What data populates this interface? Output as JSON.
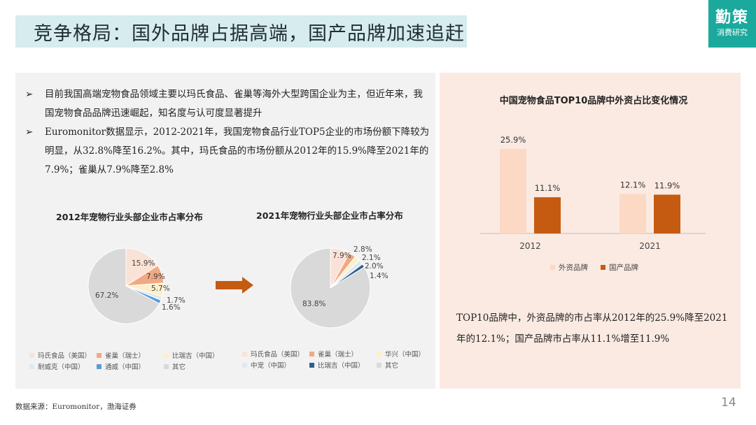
{
  "title": "竞争格局：国外品牌占据高端，国产品牌加速追赶",
  "logo": {
    "line1": "勤策",
    "line2": "消费研究"
  },
  "bullets": [
    {
      "marker": "➢",
      "text": "目前我国高端宠物食品领域主要以玛氏食品、雀巢等海外大型跨国企业为主，但近年来，我国宠物食品品牌迅速崛起，知名度与认可度显著提升"
    },
    {
      "marker": "➢",
      "text": "Euromonitor数据显示，2012-2021年，我国宠物食品行业TOP5企业的市场份额下降较为明显，从32.8%降至16.2%。其中，玛氏食品的市场份额从2012年的15.9%降至2021年的7.9%；雀巢从7.9%降至2.8%"
    }
  ],
  "note": "TOP10品牌中，外资品牌的市占率从2012年的25.9%降至2021年的12.1%；国产品牌市占率从11.1%增至11.9%",
  "source": "数据来源：Euromonitor，渤海证券",
  "page_number": "14",
  "chart_data": [
    {
      "type": "pie",
      "title": "2012年宠物行业头部企业市占率分布",
      "slices": [
        {
          "name": "玛氏食品（美国）",
          "value": 15.9,
          "label": "15.9%",
          "color": "#fbe2d6"
        },
        {
          "name": "雀巢（瑞士）",
          "value": 7.9,
          "label": "7.9%",
          "color": "#f1a983"
        },
        {
          "name": "比瑞吉（中国）",
          "value": 5.7,
          "label": "5.7%",
          "color": "#fdf0c8"
        },
        {
          "name": "耐威克（中国）",
          "value": 1.7,
          "label": "1.7%",
          "color": "#e2e8f0"
        },
        {
          "name": "通威（中国）",
          "value": 1.6,
          "label": "1.6%",
          "color": "#5b9bd5"
        },
        {
          "name": "其它",
          "value": 67.2,
          "label": "67.2%",
          "color": "#d9d9d9"
        }
      ]
    },
    {
      "type": "pie",
      "title": "2021年宠物行业头部企业市占率分布",
      "slices": [
        {
          "name": "玛氏食品（美国）",
          "value": 7.9,
          "label": "7.9%",
          "color": "#fbe2d6"
        },
        {
          "name": "雀巢（瑞士）",
          "value": 2.8,
          "label": "2.8%",
          "color": "#f1a983"
        },
        {
          "name": "华兴（中国）",
          "value": 2.1,
          "label": "2.1%",
          "color": "#fdf0c8"
        },
        {
          "name": "中宠（中国）",
          "value": 2.0,
          "label": "2.0%",
          "color": "#e2e8f0"
        },
        {
          "name": "比瑞吉（中国）",
          "value": 1.4,
          "label": "1.4%",
          "color": "#2e5f8a"
        },
        {
          "name": "其它",
          "value": 83.8,
          "label": "83.8%",
          "color": "#d9d9d9"
        }
      ]
    },
    {
      "type": "bar",
      "title": "中国宠物食品TOP10品牌中外资占比变化情况",
      "categories": [
        "2012",
        "2021"
      ],
      "series": [
        {
          "name": "外资品牌",
          "values": [
            25.9,
            12.1
          ],
          "labels": [
            "25.9%",
            "12.1%"
          ],
          "color": "#fbd9c5"
        },
        {
          "name": "国产品牌",
          "values": [
            11.1,
            11.9
          ],
          "labels": [
            "11.1%",
            "11.9%"
          ],
          "color": "#c55a11"
        }
      ],
      "ylim": [
        0,
        30
      ],
      "legend": "bottom"
    }
  ],
  "colors": {
    "accent": "#1aa99c",
    "title_bg": "#d6ecef",
    "arrow": "#c55a11"
  }
}
